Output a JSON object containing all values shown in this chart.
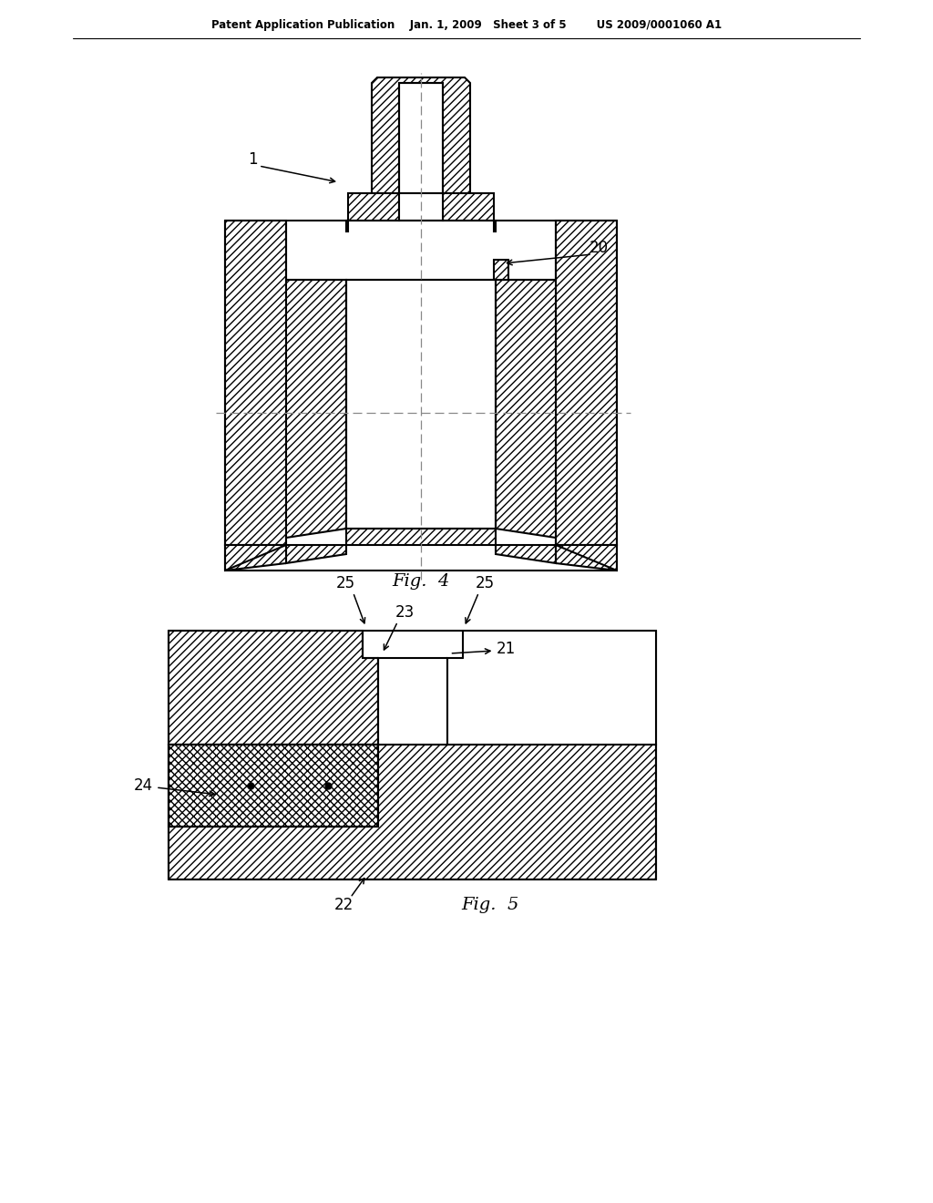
{
  "bg_color": "#ffffff",
  "lc": "#000000",
  "header": "Patent Application Publication    Jan. 1, 2009   Sheet 3 of 5        US 2009/0001060 A1",
  "fig4_caption": "Fig.  4",
  "fig5_caption": "Fig.  5",
  "lbl_1": "1",
  "lbl_20": "20",
  "lbl_21": "21",
  "lbl_22": "22",
  "lbl_23": "23",
  "lbl_24": "24",
  "lbl_25": "25"
}
